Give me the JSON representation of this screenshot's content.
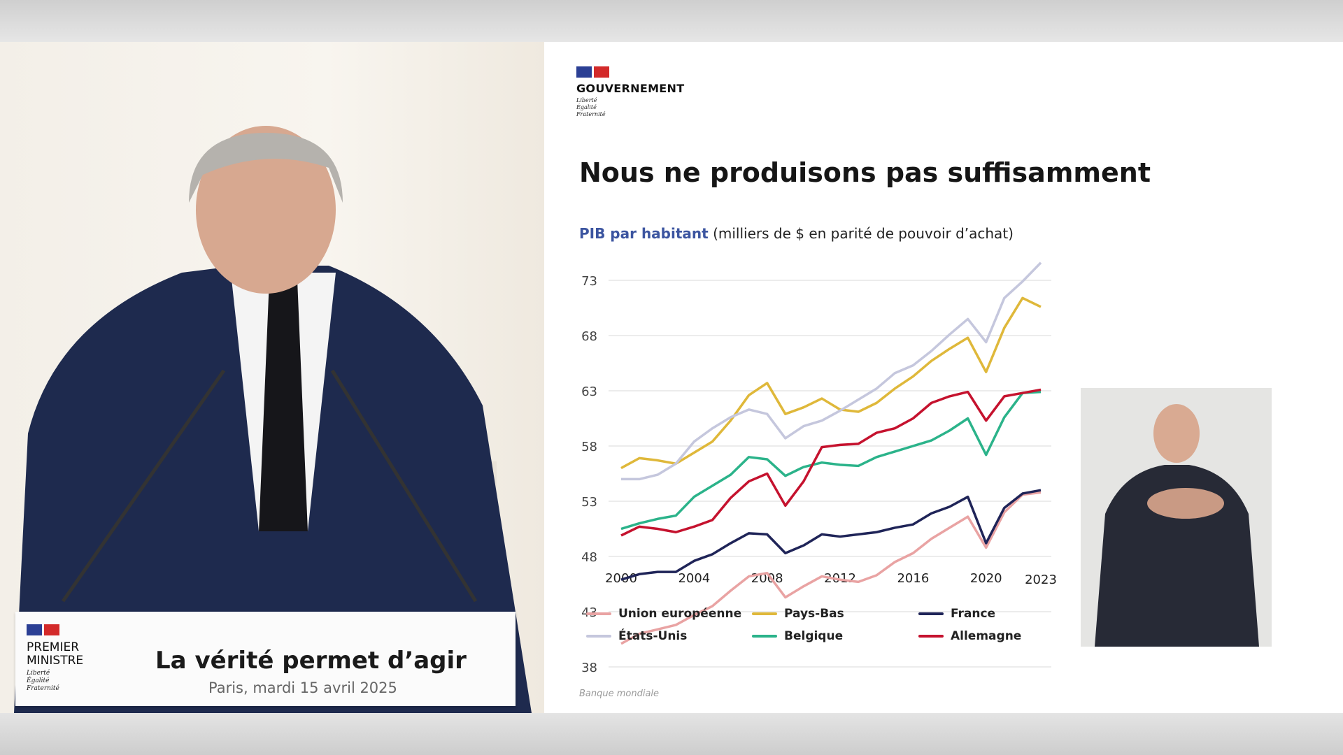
{
  "slide": {
    "logo": {
      "name": "GOUVERNEMENT",
      "motto": [
        "Liberté",
        "Égalité",
        "Fraternité"
      ]
    },
    "title": "Nous ne produisons pas suffisamment",
    "subtitle_highlight": "PIB par habitant",
    "subtitle_rest": " (milliers de $ en parité de pouvoir d’achat)",
    "source": "Banque mondiale"
  },
  "podium": {
    "logo_name": "PREMIER MINISTRE",
    "logo_line1": "PREMIER",
    "logo_line2": "MINISTRE",
    "motto": [
      "Liberté",
      "Égalité",
      "Fraternité"
    ],
    "title": "La vérité permet d’agir",
    "date": "Paris, mardi 15 avril 2025"
  },
  "chart_data": {
    "type": "line",
    "title": "PIB par habitant (milliers de $ en parité de pouvoir d’achat)",
    "x": [
      2000,
      2001,
      2002,
      2003,
      2004,
      2005,
      2006,
      2007,
      2008,
      2009,
      2010,
      2011,
      2012,
      2013,
      2014,
      2015,
      2016,
      2017,
      2018,
      2019,
      2020,
      2021,
      2022,
      2023
    ],
    "xticks": [
      "2000",
      "2004",
      "2008",
      "2012",
      "2016",
      "2020",
      "2023"
    ],
    "yticks": [
      "38",
      "43",
      "48",
      "53",
      "58",
      "63",
      "68",
      "73"
    ],
    "ylim": [
      38,
      75
    ],
    "grid": true,
    "legend_placement": "bottom",
    "series": [
      {
        "name": "Union européenne",
        "color": "#e9a3a3",
        "values": [
          40.1,
          41.0,
          41.4,
          41.8,
          42.7,
          43.5,
          44.9,
          46.2,
          46.5,
          44.3,
          45.3,
          46.2,
          45.9,
          45.7,
          46.3,
          47.5,
          48.3,
          49.6,
          50.6,
          51.6,
          48.8,
          52.0,
          53.6,
          53.8
        ]
      },
      {
        "name": "Pays-Bas",
        "color": "#dfb83a",
        "values": [
          56.0,
          56.9,
          56.7,
          56.4,
          57.4,
          58.4,
          60.3,
          62.6,
          63.7,
          60.9,
          61.5,
          62.3,
          61.3,
          61.1,
          61.9,
          63.2,
          64.3,
          65.7,
          66.8,
          67.8,
          64.7,
          68.7,
          71.4,
          70.6
        ]
      },
      {
        "name": "France",
        "color": "#1f2458",
        "values": [
          45.9,
          46.4,
          46.6,
          46.6,
          47.6,
          48.2,
          49.2,
          50.1,
          50.0,
          48.3,
          49.0,
          50.0,
          49.8,
          50.0,
          50.2,
          50.6,
          50.9,
          51.9,
          52.5,
          53.4,
          49.2,
          52.4,
          53.7,
          54.0
        ]
      },
      {
        "name": "États-Unis",
        "color": "#c5c7dd",
        "values": [
          55.0,
          55.0,
          55.4,
          56.4,
          58.4,
          59.6,
          60.6,
          61.3,
          60.9,
          58.7,
          59.8,
          60.3,
          61.2,
          62.2,
          63.2,
          64.6,
          65.3,
          66.6,
          68.1,
          69.5,
          67.4,
          71.4,
          72.9,
          74.6
        ]
      },
      {
        "name": "Belgique",
        "color": "#2bb38a",
        "values": [
          50.5,
          51.0,
          51.4,
          51.7,
          53.4,
          54.4,
          55.4,
          57.0,
          56.8,
          55.3,
          56.1,
          56.5,
          56.3,
          56.2,
          57.0,
          57.5,
          58.0,
          58.5,
          59.4,
          60.5,
          57.2,
          60.6,
          62.8,
          62.9
        ]
      },
      {
        "name": "Allemagne",
        "color": "#c5122e",
        "values": [
          49.9,
          50.7,
          50.5,
          50.2,
          50.7,
          51.3,
          53.3,
          54.8,
          55.5,
          52.6,
          54.8,
          57.9,
          58.1,
          58.2,
          59.2,
          59.6,
          60.5,
          61.9,
          62.5,
          62.9,
          60.3,
          62.5,
          62.8,
          63.1
        ]
      }
    ]
  }
}
